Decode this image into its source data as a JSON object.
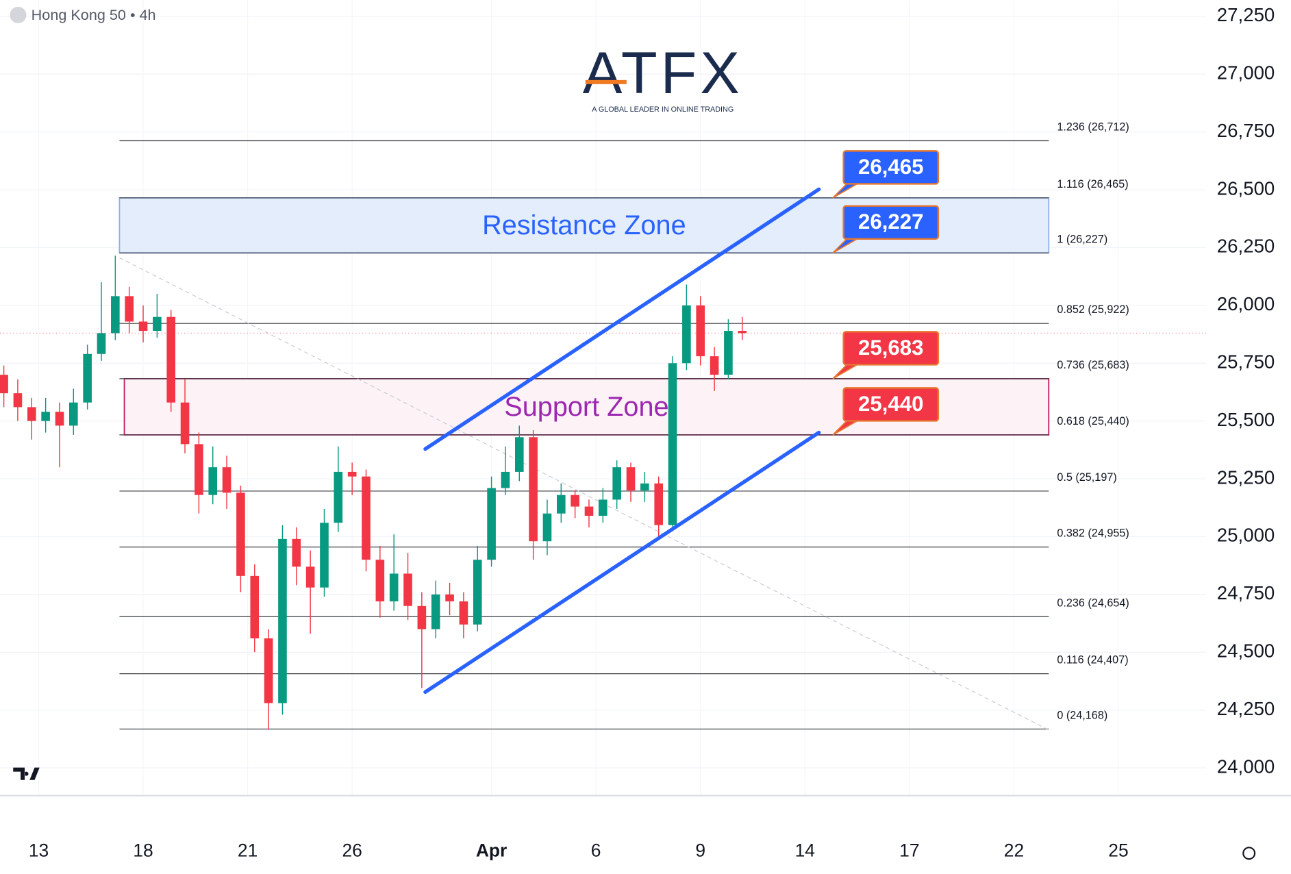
{
  "header": {
    "symbol": "Hong Kong 50 • 4h"
  },
  "logo": {
    "name": "ATFX",
    "tagline": "A GLOBAL LEADER IN ONLINE TRADING"
  },
  "chart_data": {
    "type": "candlestick",
    "up_color": "#089981",
    "down_color": "#f23645",
    "xlim": [
      -1.11,
      33.52
    ],
    "ylim": [
      23880,
      27320
    ],
    "xticks": [
      {
        "value": 0,
        "label": "13"
      },
      {
        "value": 3,
        "label": "18"
      },
      {
        "value": 6,
        "label": "21"
      },
      {
        "value": 9,
        "label": "26"
      },
      {
        "value": 13,
        "label": "Apr"
      },
      {
        "value": 16,
        "label": "6"
      },
      {
        "value": 19,
        "label": "9"
      },
      {
        "value": 22,
        "label": "14"
      },
      {
        "value": 25,
        "label": "17"
      },
      {
        "value": 28,
        "label": "22"
      },
      {
        "value": 31,
        "label": "25"
      }
    ],
    "yticks": [
      {
        "value": 24000,
        "label": "24,000"
      },
      {
        "value": 24250,
        "label": "24,250"
      },
      {
        "value": 24500,
        "label": "24,500"
      },
      {
        "value": 24750,
        "label": "24,750"
      },
      {
        "value": 25000,
        "label": "25,000"
      },
      {
        "value": 25250,
        "label": "25,250"
      },
      {
        "value": 25500,
        "label": "25,500"
      },
      {
        "value": 25750,
        "label": "25,750"
      },
      {
        "value": 26000,
        "label": "26,000"
      },
      {
        "value": 26250,
        "label": "26,250"
      },
      {
        "value": 26500,
        "label": "26,500"
      },
      {
        "value": 26750,
        "label": "26,750"
      },
      {
        "value": 27000,
        "label": "27,000"
      },
      {
        "value": 27250,
        "label": "27,250"
      }
    ],
    "grid": true,
    "x": [
      -1.0,
      -0.6,
      -0.2,
      0.2,
      0.6,
      1.0,
      1.4,
      1.8,
      2.2,
      2.6,
      3.0,
      3.4,
      3.8,
      4.2,
      4.6,
      5.0,
      5.4,
      5.8,
      6.2,
      6.6,
      7.0,
      7.4,
      7.8,
      8.2,
      8.6,
      9.0,
      9.4,
      9.8,
      10.2,
      10.6,
      11.0,
      11.4,
      11.8,
      12.2,
      12.6,
      13.0,
      13.4,
      13.8,
      14.2,
      14.6,
      15.0,
      15.4,
      15.8,
      16.2,
      16.6,
      17.0,
      17.4,
      17.8,
      18.2,
      18.6,
      19.0,
      19.4,
      19.8,
      20.2
    ],
    "open": [
      25700,
      25620,
      25560,
      25500,
      25540,
      25480,
      25580,
      25790,
      25880,
      26040,
      25930,
      25890,
      25950,
      25580,
      25400,
      25180,
      25300,
      25190,
      24830,
      24560,
      24280,
      24990,
      24870,
      24780,
      25060,
      25280,
      25260,
      24900,
      24720,
      24840,
      24700,
      24600,
      24750,
      24720,
      24620,
      24900,
      25210,
      25280,
      25430,
      24980,
      25100,
      25180,
      25130,
      25090,
      25160,
      25300,
      25200,
      25230,
      25050,
      25750,
      26000,
      25780,
      25700,
      25890
    ],
    "high": [
      25740,
      25680,
      25600,
      25600,
      25580,
      25640,
      25830,
      26100,
      26215,
      26080,
      26000,
      26050,
      25980,
      25680,
      25450,
      25390,
      25350,
      25220,
      24880,
      24600,
      25050,
      25040,
      24940,
      25120,
      25390,
      25320,
      25290,
      24960,
      25010,
      24930,
      24760,
      24810,
      24800,
      24760,
      24960,
      25260,
      25390,
      25480,
      25460,
      25160,
      25230,
      25200,
      25160,
      25210,
      25330,
      25320,
      25280,
      25260,
      25780,
      26090,
      26040,
      25820,
      25940,
      25950
    ],
    "low": [
      25560,
      25500,
      25420,
      25450,
      25300,
      25440,
      25550,
      25760,
      25850,
      25880,
      25840,
      25860,
      25540,
      25360,
      25100,
      25140,
      25120,
      24760,
      24500,
      24165,
      24230,
      24790,
      24580,
      24740,
      25020,
      25180,
      24850,
      24650,
      24680,
      24640,
      24345,
      24560,
      24660,
      24560,
      24590,
      24870,
      25180,
      25240,
      24900,
      24920,
      25060,
      25080,
      25040,
      25060,
      25120,
      25150,
      25150,
      24990,
      25030,
      25720,
      25740,
      25630,
      25680,
      25850
    ],
    "close": [
      25620,
      25560,
      25500,
      25540,
      25480,
      25580,
      25790,
      25880,
      26040,
      25930,
      25890,
      25950,
      25580,
      25400,
      25180,
      25300,
      25190,
      24830,
      24560,
      24280,
      24990,
      24870,
      24780,
      25060,
      25280,
      25260,
      24900,
      24720,
      24840,
      24700,
      24600,
      24750,
      24720,
      24620,
      24900,
      25210,
      25280,
      25430,
      24980,
      25100,
      25180,
      25130,
      25090,
      25160,
      25300,
      25200,
      25230,
      25050,
      25750,
      26000,
      25780,
      25700,
      25890,
      25880
    ],
    "fib_range": [
      2.32,
      29.0
    ],
    "fib_levels": [
      {
        "value": 26712,
        "label": "1.236 (26,712)"
      },
      {
        "value": 26465,
        "label": "1.116 (26,465)"
      },
      {
        "value": 26227,
        "label": "1 (26,227)"
      },
      {
        "value": 25922,
        "label": "0.852 (25,922)"
      },
      {
        "value": 25683,
        "label": "0.736 (25,683)"
      },
      {
        "value": 25440,
        "label": "0.618 (25,440)"
      },
      {
        "value": 25197,
        "label": "0.5 (25,197)"
      },
      {
        "value": 24955,
        "label": "0.382 (24,955)"
      },
      {
        "value": 24654,
        "label": "0.236 (24,654)"
      },
      {
        "value": 24407,
        "label": "0.116 (24,407)"
      },
      {
        "value": 24168,
        "label": "0 (24,168)"
      }
    ],
    "fib_diagonal": {
      "x": [
        2.32,
        29.0
      ],
      "y": [
        26206,
        24164
      ]
    },
    "zones": [
      {
        "name": "Resistance Zone",
        "range": [
          26227,
          26465
        ],
        "x": [
          2.32,
          29.0
        ],
        "fill": "#e3edfc",
        "stroke": "#8fb0ee",
        "text_color": "#2962ff"
      },
      {
        "name": "Support Zone",
        "range": [
          25440,
          25683
        ],
        "x": [
          2.46,
          29.0
        ],
        "fill": "#fdf3f6",
        "stroke": "#c2185b",
        "text_color": "#9c27b0"
      }
    ],
    "channel": [
      {
        "x": [
          11.1,
          22.4
        ],
        "y": [
          25379,
          26502
        ]
      },
      {
        "x": [
          11.1,
          22.4
        ],
        "y": [
          24328,
          25450
        ]
      }
    ],
    "channel_color": "#2962ff",
    "callouts": [
      {
        "value": 26465,
        "label": "26,465",
        "color": "#2962ff"
      },
      {
        "value": 26227,
        "label": "26,227",
        "color": "#2962ff"
      },
      {
        "value": 25683,
        "label": "25,683",
        "color": "#f23645"
      },
      {
        "value": 25440,
        "label": "25,440",
        "color": "#f23645"
      }
    ],
    "callout_x": 22.8
  }
}
